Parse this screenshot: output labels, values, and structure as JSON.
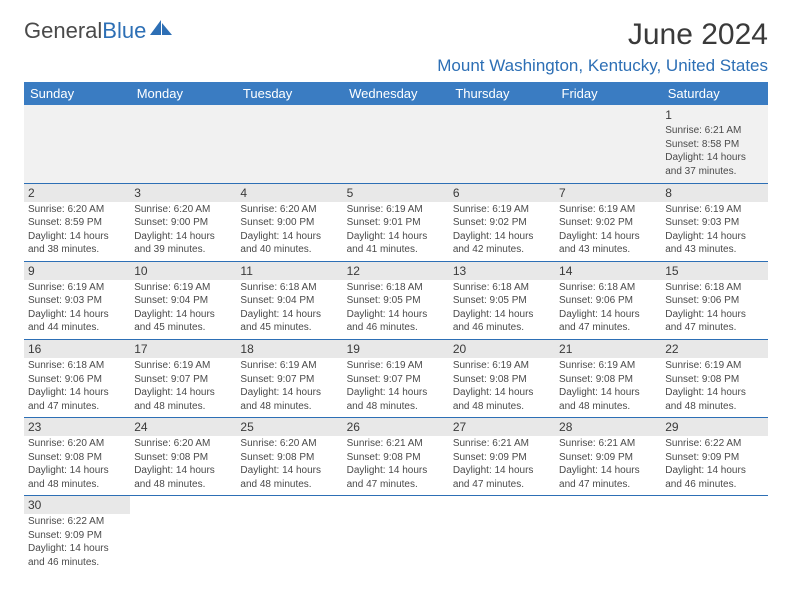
{
  "logo": {
    "text_gray": "General",
    "text_blue": "Blue"
  },
  "month_title": "June 2024",
  "location": "Mount Washington, Kentucky, United States",
  "colors": {
    "header_bg": "#3a7cc2",
    "accent": "#2d6fb5",
    "text": "#4a4a4a",
    "gray_bg": "#f1f1f1",
    "daynum_bg": "#e8e8e8"
  },
  "day_headers": [
    "Sunday",
    "Monday",
    "Tuesday",
    "Wednesday",
    "Thursday",
    "Friday",
    "Saturday"
  ],
  "weeks": [
    [
      null,
      null,
      null,
      null,
      null,
      null,
      {
        "n": "1",
        "sr": "6:21 AM",
        "ss": "8:58 PM",
        "dh": "14",
        "dm": "37"
      }
    ],
    [
      {
        "n": "2",
        "sr": "6:20 AM",
        "ss": "8:59 PM",
        "dh": "14",
        "dm": "38"
      },
      {
        "n": "3",
        "sr": "6:20 AM",
        "ss": "9:00 PM",
        "dh": "14",
        "dm": "39"
      },
      {
        "n": "4",
        "sr": "6:20 AM",
        "ss": "9:00 PM",
        "dh": "14",
        "dm": "40"
      },
      {
        "n": "5",
        "sr": "6:19 AM",
        "ss": "9:01 PM",
        "dh": "14",
        "dm": "41"
      },
      {
        "n": "6",
        "sr": "6:19 AM",
        "ss": "9:02 PM",
        "dh": "14",
        "dm": "42"
      },
      {
        "n": "7",
        "sr": "6:19 AM",
        "ss": "9:02 PM",
        "dh": "14",
        "dm": "43"
      },
      {
        "n": "8",
        "sr": "6:19 AM",
        "ss": "9:03 PM",
        "dh": "14",
        "dm": "43"
      }
    ],
    [
      {
        "n": "9",
        "sr": "6:19 AM",
        "ss": "9:03 PM",
        "dh": "14",
        "dm": "44"
      },
      {
        "n": "10",
        "sr": "6:19 AM",
        "ss": "9:04 PM",
        "dh": "14",
        "dm": "45"
      },
      {
        "n": "11",
        "sr": "6:18 AM",
        "ss": "9:04 PM",
        "dh": "14",
        "dm": "45"
      },
      {
        "n": "12",
        "sr": "6:18 AM",
        "ss": "9:05 PM",
        "dh": "14",
        "dm": "46"
      },
      {
        "n": "13",
        "sr": "6:18 AM",
        "ss": "9:05 PM",
        "dh": "14",
        "dm": "46"
      },
      {
        "n": "14",
        "sr": "6:18 AM",
        "ss": "9:06 PM",
        "dh": "14",
        "dm": "47"
      },
      {
        "n": "15",
        "sr": "6:18 AM",
        "ss": "9:06 PM",
        "dh": "14",
        "dm": "47"
      }
    ],
    [
      {
        "n": "16",
        "sr": "6:18 AM",
        "ss": "9:06 PM",
        "dh": "14",
        "dm": "47"
      },
      {
        "n": "17",
        "sr": "6:19 AM",
        "ss": "9:07 PM",
        "dh": "14",
        "dm": "48"
      },
      {
        "n": "18",
        "sr": "6:19 AM",
        "ss": "9:07 PM",
        "dh": "14",
        "dm": "48"
      },
      {
        "n": "19",
        "sr": "6:19 AM",
        "ss": "9:07 PM",
        "dh": "14",
        "dm": "48"
      },
      {
        "n": "20",
        "sr": "6:19 AM",
        "ss": "9:08 PM",
        "dh": "14",
        "dm": "48"
      },
      {
        "n": "21",
        "sr": "6:19 AM",
        "ss": "9:08 PM",
        "dh": "14",
        "dm": "48"
      },
      {
        "n": "22",
        "sr": "6:19 AM",
        "ss": "9:08 PM",
        "dh": "14",
        "dm": "48"
      }
    ],
    [
      {
        "n": "23",
        "sr": "6:20 AM",
        "ss": "9:08 PM",
        "dh": "14",
        "dm": "48"
      },
      {
        "n": "24",
        "sr": "6:20 AM",
        "ss": "9:08 PM",
        "dh": "14",
        "dm": "48"
      },
      {
        "n": "25",
        "sr": "6:20 AM",
        "ss": "9:08 PM",
        "dh": "14",
        "dm": "48"
      },
      {
        "n": "26",
        "sr": "6:21 AM",
        "ss": "9:08 PM",
        "dh": "14",
        "dm": "47"
      },
      {
        "n": "27",
        "sr": "6:21 AM",
        "ss": "9:09 PM",
        "dh": "14",
        "dm": "47"
      },
      {
        "n": "28",
        "sr": "6:21 AM",
        "ss": "9:09 PM",
        "dh": "14",
        "dm": "47"
      },
      {
        "n": "29",
        "sr": "6:22 AM",
        "ss": "9:09 PM",
        "dh": "14",
        "dm": "46"
      }
    ],
    [
      {
        "n": "30",
        "sr": "6:22 AM",
        "ss": "9:09 PM",
        "dh": "14",
        "dm": "46"
      },
      null,
      null,
      null,
      null,
      null,
      null
    ]
  ],
  "labels": {
    "sunrise": "Sunrise:",
    "sunset": "Sunset:",
    "daylight_prefix": "Daylight:",
    "hours_word": "hours",
    "and_word": "and",
    "minutes_suffix": "minutes."
  }
}
